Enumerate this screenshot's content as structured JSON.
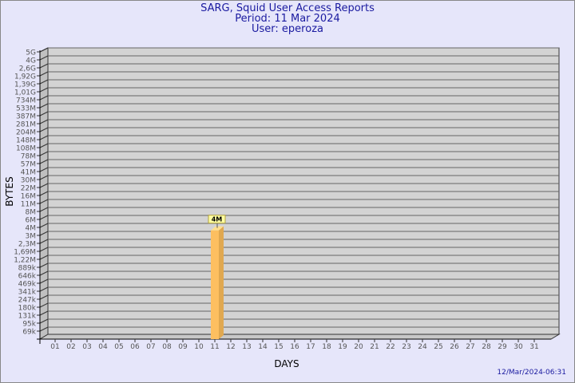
{
  "header": {
    "title": "SARG, Squid User Access Reports",
    "period": "Period: 11 Mar 2024",
    "user": "User: eperoza"
  },
  "footer": {
    "timestamp": "12/Mar/2024-06:31"
  },
  "colors": {
    "background": "#e6e6fa",
    "plot": "#d3d3d3",
    "bar": "#fdbf60",
    "title": "#1a1aa0"
  },
  "chart_data": {
    "type": "bar",
    "style": "3d",
    "xlabel": "DAYS",
    "ylabel": "BYTES",
    "yscale": "log",
    "grid": true,
    "ytick_labels": [
      "5G",
      "4G",
      "2,6G",
      "1,92G",
      "1,39G",
      "1,01G",
      "734M",
      "533M",
      "387M",
      "281M",
      "204M",
      "148M",
      "108M",
      "78M",
      "57M",
      "41M",
      "30M",
      "22M",
      "16M",
      "11M",
      "8M",
      "6M",
      "4M",
      "3M",
      "2,3M",
      "1,69M",
      "1,22M",
      "889k",
      "646k",
      "469k",
      "341k",
      "247k",
      "180k",
      "131k",
      "95k",
      "69k"
    ],
    "categories": [
      "01",
      "02",
      "03",
      "04",
      "05",
      "06",
      "07",
      "08",
      "09",
      "10",
      "11",
      "12",
      "13",
      "14",
      "15",
      "16",
      "17",
      "18",
      "19",
      "20",
      "21",
      "22",
      "23",
      "24",
      "25",
      "26",
      "27",
      "28",
      "29",
      "30",
      "31"
    ],
    "values": [
      0,
      0,
      0,
      0,
      0,
      0,
      0,
      0,
      0,
      0,
      3600000,
      0,
      0,
      0,
      0,
      0,
      0,
      0,
      0,
      0,
      0,
      0,
      0,
      0,
      0,
      0,
      0,
      0,
      0,
      0,
      0
    ],
    "data_labels": {
      "11": "4M"
    }
  }
}
